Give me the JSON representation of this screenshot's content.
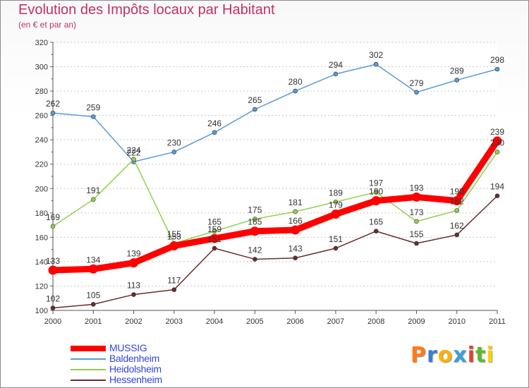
{
  "title": "Evolution des Impôts locaux par Habitant",
  "subtitle": "(en € et par an)",
  "logo": {
    "text": "Proxiti",
    "colors": [
      "#ff7a1a",
      "#3a7fd0",
      "#ffb000",
      "#3aa0d8",
      "#e0432a",
      "#5cb82c",
      "#ffd000"
    ]
  },
  "chart_data": {
    "type": "line",
    "title": "Evolution des Impôts locaux par Habitant",
    "subtitle": "(en € et par an)",
    "xlabel": "",
    "ylabel": "",
    "x": [
      "2000",
      "2001",
      "2002",
      "2003",
      "2004",
      "2005",
      "2006",
      "2007",
      "2008",
      "2009",
      "2010",
      "2011"
    ],
    "ylim": [
      100,
      320
    ],
    "yticks": [
      100,
      120,
      140,
      160,
      180,
      200,
      220,
      240,
      260,
      280,
      300,
      320
    ],
    "grid": "horizontal",
    "legend_position": "bottom-left",
    "series": [
      {
        "name": "MUSSIG",
        "color": "#ff0000",
        "emphasis": true,
        "values": [
          133,
          134,
          139,
          153,
          159,
          165,
          166,
          179,
          190,
          193,
          190,
          239
        ],
        "labels": [
          "133",
          "134",
          "139",
          "153",
          "159",
          "165",
          "166",
          "179",
          "190",
          "193",
          "190",
          "239"
        ]
      },
      {
        "name": "Baldenheim",
        "color": "#5b9bd5",
        "values": [
          262,
          259,
          222,
          230,
          246,
          265,
          280,
          294,
          302,
          279,
          289,
          298
        ],
        "labels": [
          "262",
          "259",
          "222",
          "230",
          "246",
          "265",
          "280",
          "294",
          "302",
          "279",
          "289",
          "298"
        ]
      },
      {
        "name": "Heidolsheim",
        "color": "#92d050",
        "values": [
          169,
          191,
          224,
          155,
          165,
          175,
          181,
          189,
          197,
          173,
          182,
          230
        ],
        "labels": [
          "169",
          "191",
          "224",
          "155",
          "165",
          "175",
          "181",
          "189",
          "197",
          "173",
          "182",
          "230"
        ]
      },
      {
        "name": "Hessenheim",
        "color": "#6b2c2c",
        "values": [
          102,
          105,
          113,
          117,
          151,
          142,
          143,
          151,
          165,
          155,
          162,
          194
        ],
        "labels": [
          "102",
          "105",
          "113",
          "117",
          "151",
          "142",
          "143",
          "151",
          "165",
          "155",
          "162",
          "194"
        ]
      }
    ]
  }
}
